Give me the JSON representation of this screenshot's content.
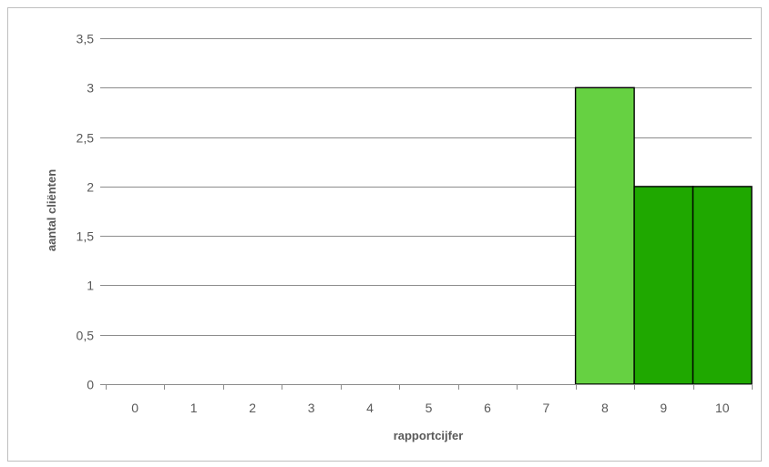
{
  "chart_data": {
    "type": "bar",
    "title": "",
    "xlabel": "rapportcijfer",
    "ylabel": "aantal cliënten",
    "categories": [
      "0",
      "1",
      "2",
      "3",
      "4",
      "5",
      "6",
      "7",
      "8",
      "9",
      "10"
    ],
    "values": [
      0,
      0,
      0,
      0,
      0,
      0,
      0,
      0,
      3,
      2,
      2
    ],
    "bar_colors": [
      "#1fa800",
      "#1fa800",
      "#1fa800",
      "#1fa800",
      "#1fa800",
      "#1fa800",
      "#1fa800",
      "#1fa800",
      "#66d142",
      "#1fa800",
      "#1fa800"
    ],
    "ylim": [
      0,
      3.5
    ],
    "yticks": [
      "0",
      "0,5",
      "1",
      "1,5",
      "2",
      "2,5",
      "3",
      "3,5"
    ],
    "ytick_values": [
      0,
      0.5,
      1,
      1.5,
      2,
      2.5,
      3,
      3.5
    ],
    "grid": true,
    "legend": "none"
  }
}
